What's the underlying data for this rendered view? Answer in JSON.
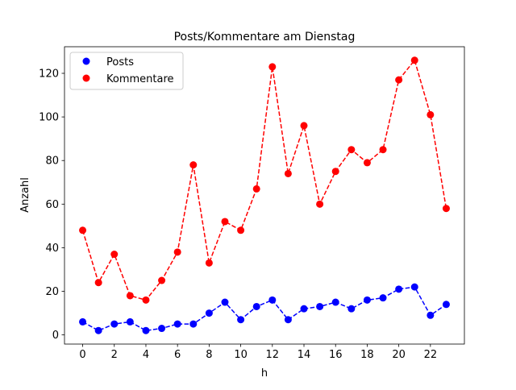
{
  "chart_data": {
    "type": "line",
    "title": "Posts/Kommentare am Dienstag",
    "xlabel": "h",
    "ylabel": "Anzahl",
    "xlim": [
      -1.15,
      24.15
    ],
    "ylim": [
      -4.2,
      132.2
    ],
    "xticks": [
      0,
      2,
      4,
      6,
      8,
      10,
      12,
      14,
      16,
      18,
      20,
      22
    ],
    "yticks": [
      0,
      20,
      40,
      60,
      80,
      100,
      120
    ],
    "grid": false,
    "legend_position": "top-left",
    "x": [
      0,
      1,
      2,
      3,
      4,
      5,
      6,
      7,
      8,
      9,
      10,
      11,
      12,
      13,
      14,
      15,
      16,
      17,
      18,
      19,
      20,
      21,
      22,
      23
    ],
    "series": [
      {
        "name": "Posts",
        "color": "#0000ff",
        "line_style": "dashed",
        "marker": "circle",
        "values": [
          6,
          2,
          5,
          6,
          2,
          3,
          5,
          5,
          10,
          15,
          7,
          13,
          16,
          7,
          12,
          13,
          15,
          12,
          16,
          17,
          21,
          22,
          9,
          14
        ]
      },
      {
        "name": "Kommentare",
        "color": "#ff0000",
        "line_style": "dashed",
        "marker": "circle",
        "values": [
          48,
          24,
          37,
          18,
          16,
          25,
          38,
          78,
          33,
          52,
          48,
          67,
          123,
          74,
          96,
          60,
          75,
          85,
          79,
          85,
          117,
          126,
          101,
          58
        ]
      }
    ]
  }
}
